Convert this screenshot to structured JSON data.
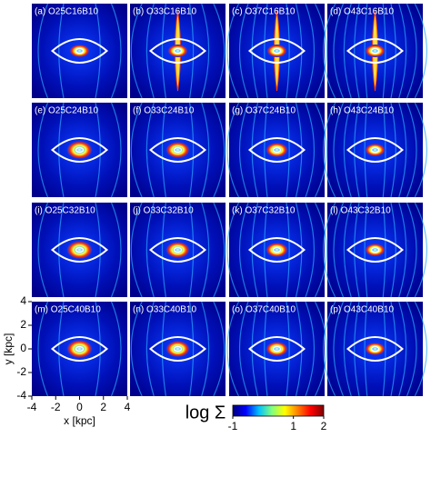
{
  "chart_data": {
    "type": "image-grid",
    "panels": [
      "(a) O25C16B10",
      "(b) O33C16B10",
      "(c) O37C16B10",
      "(d) O43C16B10",
      "(e) O25C24B10",
      "(f) O33C24B10",
      "(g) O37C24B10",
      "(h) O43C24B10",
      "(i) O25C32B10",
      "(j) O33C32B10",
      "(k) O37C32B10",
      "(l) O43C32B10",
      "(m) O25C40B10",
      "(n) O33C40B10",
      "(o) O37C40B10",
      "(p) O43C40B10"
    ],
    "xlabel": "x [kpc]",
    "ylabel": "y [kpc]",
    "xlim": [
      -4,
      4
    ],
    "ylim": [
      -4,
      4
    ],
    "xticks": [
      -4,
      -2,
      0,
      2,
      4
    ],
    "yticks": [
      -4,
      -2,
      0,
      2,
      4
    ],
    "colorbar": {
      "label": "log Σ",
      "lim": [
        -1,
        2
      ],
      "ticks": [
        -1,
        1,
        2
      ],
      "colors": [
        "#00007f",
        "#0000ff",
        "#00bfff",
        "#7fff7f",
        "#ffff00",
        "#ff7f00",
        "#ff0000",
        "#7f0000"
      ]
    }
  }
}
